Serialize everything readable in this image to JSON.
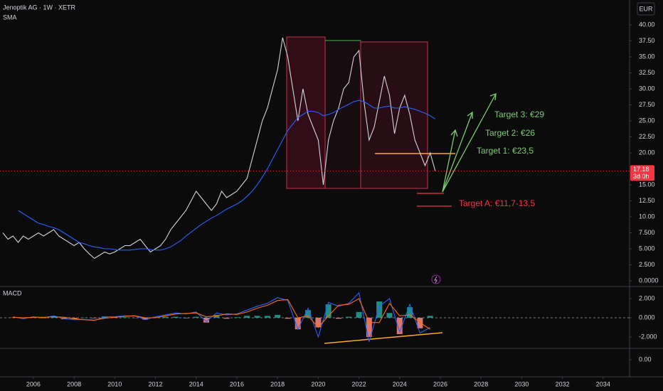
{
  "chart_data": [
    {
      "type": "line",
      "title": "Jenoptik AG · 1W · XETR",
      "currency": "EUR",
      "countdown": "3d 0h",
      "x": [
        2004.5,
        2004.75,
        2005,
        2005.25,
        2005.5,
        2005.75,
        2006,
        2006.25,
        2006.5,
        2006.75,
        2007,
        2007.25,
        2007.5,
        2007.75,
        2008,
        2008.25,
        2008.5,
        2008.75,
        2009,
        2009.25,
        2009.5,
        2009.75,
        2010,
        2010.25,
        2010.5,
        2010.75,
        2011,
        2011.25,
        2011.5,
        2011.75,
        2012,
        2012.25,
        2012.5,
        2012.75,
        2013,
        2013.25,
        2013.5,
        2013.75,
        2014,
        2014.25,
        2014.5,
        2014.75,
        2015,
        2015.25,
        2015.5,
        2015.75,
        2016,
        2016.25,
        2016.5,
        2016.75,
        2017,
        2017.25,
        2017.5,
        2017.75,
        2018,
        2018.25,
        2018.5,
        2018.75,
        2019,
        2019.25,
        2019.5,
        2019.75,
        2020,
        2020.25,
        2020.5,
        2020.75,
        2021,
        2021.25,
        2021.5,
        2021.75,
        2022,
        2022.25,
        2022.5,
        2022.75,
        2023,
        2023.25,
        2023.5,
        2023.75,
        2024,
        2024.25,
        2024.5,
        2024.75,
        2025,
        2025.25,
        2025.5,
        2025.75
      ],
      "series": [
        {
          "color": "#d1d4dc",
          "values": [
            7.5,
            6.5,
            7,
            6,
            7,
            6.5,
            7,
            7.5,
            7,
            7.5,
            8,
            7,
            6.5,
            6,
            5.5,
            6,
            5,
            4.2,
            3.5,
            4,
            4.5,
            4.2,
            4.5,
            5,
            5.5,
            5.5,
            6,
            6.5,
            5.5,
            4.5,
            5,
            5.5,
            6.5,
            8,
            9,
            10,
            11,
            12.5,
            14,
            13,
            12,
            11,
            12,
            14,
            13,
            13.5,
            14,
            15,
            16,
            19,
            22,
            25,
            27,
            30,
            33,
            38,
            35,
            30,
            25,
            30,
            26,
            24,
            22,
            15,
            22,
            25,
            27,
            30,
            31,
            35,
            36,
            28,
            22,
            24,
            28,
            32,
            29,
            23,
            27,
            29,
            26,
            22,
            20,
            18,
            20,
            17.18
          ]
        },
        {
          "name": "SMA",
          "color": "#2962ff",
          "values": [
            null,
            null,
            null,
            11,
            10.5,
            10,
            9.5,
            9,
            8.8,
            8.5,
            8.3,
            8,
            7.5,
            7,
            6.5,
            6,
            5.8,
            5.5,
            5.3,
            5.2,
            5,
            5,
            4.9,
            4.8,
            4.8,
            4.8,
            4.9,
            5,
            5,
            4.9,
            4.8,
            4.8,
            5,
            5.3,
            5.8,
            6.3,
            7,
            7.6,
            8.2,
            8.8,
            9.3,
            9.8,
            10.2,
            10.7,
            11.2,
            11.6,
            12,
            12.5,
            13.2,
            14,
            15,
            16.2,
            17.5,
            19,
            20.5,
            22,
            23.5,
            24.5,
            25.5,
            26,
            26.5,
            26.5,
            26.3,
            25.8,
            26,
            26.3,
            26.8,
            27.2,
            27.6,
            28,
            28.2,
            28,
            27.5,
            27,
            27,
            27.2,
            27.3,
            27,
            27,
            27.2,
            27,
            26.8,
            26.5,
            26.2,
            25.8,
            25.3
          ]
        }
      ],
      "xlim": [
        2004.36,
        2035.3
      ],
      "xticks": [
        2006,
        2008,
        2010,
        2012,
        2014,
        2016,
        2018,
        2020,
        2022,
        2024,
        2026,
        2028,
        2030,
        2032,
        2034
      ],
      "ylim": [
        -0.89,
        43.89
      ],
      "yticks": [
        {
          "value": 40,
          "label": "40.00"
        },
        {
          "value": 37.5,
          "label": "37.50"
        },
        {
          "value": 35,
          "label": "35.00"
        },
        {
          "value": 32.5,
          "label": "32.50"
        },
        {
          "value": 30,
          "label": "30.00"
        },
        {
          "value": 27.5,
          "label": "27.50"
        },
        {
          "value": 25,
          "label": "25.00"
        },
        {
          "value": 22.5,
          "label": "22.50"
        },
        {
          "value": 20,
          "label": "20.00"
        },
        {
          "value": 15,
          "label": "15.00"
        },
        {
          "value": 12.5,
          "label": "12.50"
        },
        {
          "value": 10,
          "label": "10.00"
        },
        {
          "value": 7.5,
          "label": "7.500"
        },
        {
          "value": 5,
          "label": "5.000"
        },
        {
          "value": 2.5,
          "label": "2.500"
        },
        {
          "value": 0,
          "label": "0.0000"
        }
      ],
      "grid": false,
      "annotations": [
        "Target 3: €29",
        "Target 2: €26",
        "Target 1: €23,5",
        "Target A: €11,7-13,5"
      ]
    },
    {
      "type": "macd",
      "title": "MACD",
      "x": [
        2005,
        2005.5,
        2006,
        2006.5,
        2007,
        2007.5,
        2008,
        2008.5,
        2009,
        2009.5,
        2010,
        2010.5,
        2011,
        2011.5,
        2012,
        2012.5,
        2013,
        2013.5,
        2014,
        2014.5,
        2015,
        2015.5,
        2016,
        2016.5,
        2017,
        2017.5,
        2018,
        2018.5,
        2019,
        2019.5,
        2020,
        2020.5,
        2021,
        2021.5,
        2022,
        2022.5,
        2023,
        2023.5,
        2024,
        2024.5,
        2025,
        2025.5
      ],
      "series": [
        {
          "type": "bar",
          "color": "#26a69a",
          "negative_color": "#ff8a80",
          "values": [
            0.05,
            -0.1,
            0.05,
            -0.05,
            0.1,
            -0.15,
            -0.1,
            0,
            -0.05,
            0.15,
            0.05,
            0.05,
            0,
            -0.2,
            0.1,
            0.1,
            0.1,
            -0.05,
            0.1,
            -0.5,
            0.3,
            -0.1,
            0.05,
            0.2,
            0.2,
            0.2,
            0.3,
            -0.1,
            -1.2,
            0.8,
            -1,
            1.4,
            -0.1,
            0.1,
            0.6,
            -2,
            1.7,
            0.5,
            -1.7,
            1.1,
            -1.1,
            0.2
          ]
        },
        {
          "type": "line",
          "color": "#2962ff",
          "values": [
            0.1,
            -0.1,
            0.1,
            0,
            0.2,
            -0.1,
            -0.2,
            -0.2,
            -0.3,
            0.1,
            0.1,
            0.2,
            0.2,
            -0.2,
            0.1,
            0.3,
            0.5,
            0.4,
            0.6,
            -0.4,
            0.5,
            0.3,
            0.4,
            0.8,
            1.2,
            1.5,
            2.1,
            1.8,
            -1.2,
            1,
            -2,
            1.6,
            1.2,
            1.5,
            2.6,
            -2.5,
            1.2,
            2,
            -1.5,
            1.4,
            -1.6,
            -1
          ]
        },
        {
          "type": "line",
          "color": "#ff6d00",
          "values": [
            0.05,
            0,
            0.05,
            0.05,
            0.1,
            0.05,
            -0.1,
            -0.2,
            -0.25,
            -0.05,
            0.05,
            0.15,
            0.2,
            0,
            0,
            0.2,
            0.4,
            0.45,
            0.5,
            0.1,
            0.2,
            0.4,
            0.35,
            0.6,
            1,
            1.3,
            1.8,
            1.9,
            0,
            0.2,
            -1,
            0.2,
            1.3,
            1.4,
            2,
            -0.5,
            -0.5,
            1.5,
            0.2,
            0.3,
            -0.5,
            -1.2
          ]
        }
      ],
      "ylim": [
        -3.19,
        3.26
      ],
      "yticks": [
        {
          "value": 2,
          "label": "2.000"
        },
        {
          "value": 0,
          "label": "0.000"
        },
        {
          "value": -2,
          "label": "-2.000"
        }
      ]
    },
    {
      "type": "empty",
      "ylim": [
        -1.2,
        0.8
      ],
      "yticks": [
        {
          "value": 0,
          "label": "0.00"
        }
      ]
    }
  ]
}
